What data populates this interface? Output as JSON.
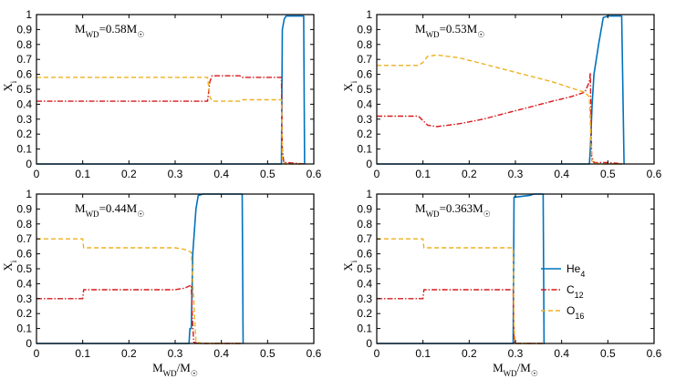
{
  "figure": {
    "xlabel": "M_WD/M_☉",
    "ylabel": "X_i",
    "legend": [
      {
        "name": "He_4",
        "color": "#0072BD",
        "style": "solid"
      },
      {
        "name": "C_12",
        "color": "#D7191C",
        "style": "dashdot"
      },
      {
        "name": "O_16",
        "color": "#EDB120",
        "style": "dashed"
      }
    ]
  },
  "chart_data": [
    {
      "type": "line",
      "title": "M_WD=0.58M_☉",
      "xlim": [
        0,
        0.6
      ],
      "ylim": [
        0,
        1
      ],
      "xticks": [
        "0",
        "0.1",
        "0.2",
        "0.3",
        "0.4",
        "0.5",
        "0.6"
      ],
      "yticks": [
        "0",
        "0.1",
        "0.2",
        "0.3",
        "0.4",
        "0.5",
        "0.6",
        "0.7",
        "0.8",
        "0.9",
        "1"
      ],
      "series": [
        {
          "name": "O_16",
          "color": "#EDB120",
          "x": [
            0.0,
            0.37,
            0.375,
            0.38,
            0.44,
            0.445,
            0.53,
            0.532,
            0.535,
            0.537,
            0.58
          ],
          "y": [
            0.58,
            0.58,
            0.45,
            0.42,
            0.42,
            0.43,
            0.43,
            0.02,
            0.01,
            0.0,
            0.0
          ]
        },
        {
          "name": "C_12",
          "color": "#D7191C",
          "x": [
            0.0,
            0.37,
            0.375,
            0.38,
            0.44,
            0.445,
            0.53,
            0.532,
            0.535,
            0.54,
            0.58
          ],
          "y": [
            0.42,
            0.42,
            0.55,
            0.59,
            0.59,
            0.58,
            0.58,
            0.1,
            0.01,
            0.01,
            0.0
          ]
        },
        {
          "name": "He_4",
          "color": "#0072BD",
          "x": [
            0.0,
            0.53,
            0.532,
            0.536,
            0.54,
            0.578,
            0.58
          ],
          "y": [
            0.0,
            0.0,
            0.9,
            0.97,
            0.99,
            0.99,
            0.0
          ]
        }
      ]
    },
    {
      "type": "line",
      "title": "M_WD=0.53M_☉",
      "xlim": [
        0,
        0.6
      ],
      "ylim": [
        0,
        1
      ],
      "xticks": [
        "0",
        "0.1",
        "0.2",
        "0.3",
        "0.4",
        "0.5",
        "0.6"
      ],
      "yticks": [
        "0",
        "0.1",
        "0.2",
        "0.3",
        "0.4",
        "0.5",
        "0.6",
        "0.7",
        "0.8",
        "0.9",
        "1"
      ],
      "series": [
        {
          "name": "O_16",
          "color": "#EDB120",
          "x": [
            0.0,
            0.09,
            0.1,
            0.11,
            0.13,
            0.18,
            0.23,
            0.28,
            0.33,
            0.38,
            0.42,
            0.45,
            0.46,
            0.465,
            0.47,
            0.48,
            0.535
          ],
          "y": [
            0.66,
            0.66,
            0.68,
            0.72,
            0.73,
            0.71,
            0.67,
            0.63,
            0.59,
            0.55,
            0.51,
            0.48,
            0.45,
            0.02,
            0.01,
            0.0,
            0.0
          ]
        },
        {
          "name": "C_12",
          "color": "#D7191C",
          "x": [
            0.0,
            0.09,
            0.1,
            0.11,
            0.13,
            0.18,
            0.23,
            0.28,
            0.33,
            0.38,
            0.42,
            0.45,
            0.46,
            0.462,
            0.465,
            0.47,
            0.5,
            0.535
          ],
          "y": [
            0.32,
            0.32,
            0.29,
            0.26,
            0.25,
            0.27,
            0.3,
            0.34,
            0.38,
            0.42,
            0.45,
            0.48,
            0.55,
            0.61,
            0.05,
            0.01,
            0.01,
            0.0
          ]
        },
        {
          "name": "He_4",
          "color": "#0072BD",
          "x": [
            0.0,
            0.46,
            0.462,
            0.466,
            0.47,
            0.48,
            0.49,
            0.5,
            0.53,
            0.535
          ],
          "y": [
            0.0,
            0.0,
            0.1,
            0.4,
            0.6,
            0.8,
            0.98,
            0.99,
            0.99,
            0.0
          ]
        }
      ]
    },
    {
      "type": "line",
      "title": "M_WD=0.44M_☉",
      "xlim": [
        0,
        0.6
      ],
      "ylim": [
        0,
        1
      ],
      "xticks": [
        "0",
        "0.1",
        "0.2",
        "0.3",
        "0.4",
        "0.5",
        "0.6"
      ],
      "yticks": [
        "0",
        "0.1",
        "0.2",
        "0.3",
        "0.4",
        "0.5",
        "0.6",
        "0.7",
        "0.8",
        "0.9",
        "1"
      ],
      "series": [
        {
          "name": "O_16",
          "color": "#EDB120",
          "x": [
            0.0,
            0.1,
            0.102,
            0.3,
            0.32,
            0.335,
            0.34,
            0.345,
            0.36,
            0.445
          ],
          "y": [
            0.7,
            0.7,
            0.64,
            0.64,
            0.63,
            0.61,
            0.3,
            0.01,
            0.0,
            0.0
          ]
        },
        {
          "name": "C_12",
          "color": "#D7191C",
          "x": [
            0.0,
            0.1,
            0.102,
            0.3,
            0.32,
            0.335,
            0.337,
            0.34,
            0.35,
            0.445
          ],
          "y": [
            0.3,
            0.3,
            0.36,
            0.36,
            0.37,
            0.39,
            0.2,
            0.01,
            0.0,
            0.0
          ]
        },
        {
          "name": "He_4",
          "color": "#0072BD",
          "x": [
            0.0,
            0.33,
            0.332,
            0.335,
            0.338,
            0.345,
            0.35,
            0.36,
            0.445,
            0.447
          ],
          "y": [
            0.0,
            0.0,
            0.1,
            0.1,
            0.6,
            0.9,
            0.99,
            1.0,
            1.0,
            0.0
          ]
        }
      ]
    },
    {
      "type": "line",
      "title": "M_WD=0.363M_☉",
      "xlim": [
        0,
        0.6
      ],
      "ylim": [
        0,
        1
      ],
      "xticks": [
        "0",
        "0.1",
        "0.2",
        "0.3",
        "0.4",
        "0.5",
        "0.6"
      ],
      "yticks": [
        "0",
        "0.1",
        "0.2",
        "0.3",
        "0.4",
        "0.5",
        "0.6",
        "0.7",
        "0.8",
        "0.9",
        "1"
      ],
      "series": [
        {
          "name": "O_16",
          "color": "#EDB120",
          "x": [
            0.0,
            0.1,
            0.102,
            0.295,
            0.297,
            0.3,
            0.363
          ],
          "y": [
            0.7,
            0.7,
            0.64,
            0.64,
            0.1,
            0.0,
            0.0
          ]
        },
        {
          "name": "C_12",
          "color": "#D7191C",
          "x": [
            0.0,
            0.1,
            0.102,
            0.295,
            0.297,
            0.3,
            0.363
          ],
          "y": [
            0.3,
            0.3,
            0.36,
            0.36,
            0.02,
            0.0,
            0.0
          ]
        },
        {
          "name": "He_4",
          "color": "#0072BD",
          "x": [
            0.0,
            0.295,
            0.297,
            0.3,
            0.33,
            0.34,
            0.36,
            0.362,
            0.363
          ],
          "y": [
            0.0,
            0.0,
            0.98,
            0.98,
            0.99,
            1.0,
            1.0,
            0.0,
            0.0
          ]
        }
      ]
    }
  ]
}
